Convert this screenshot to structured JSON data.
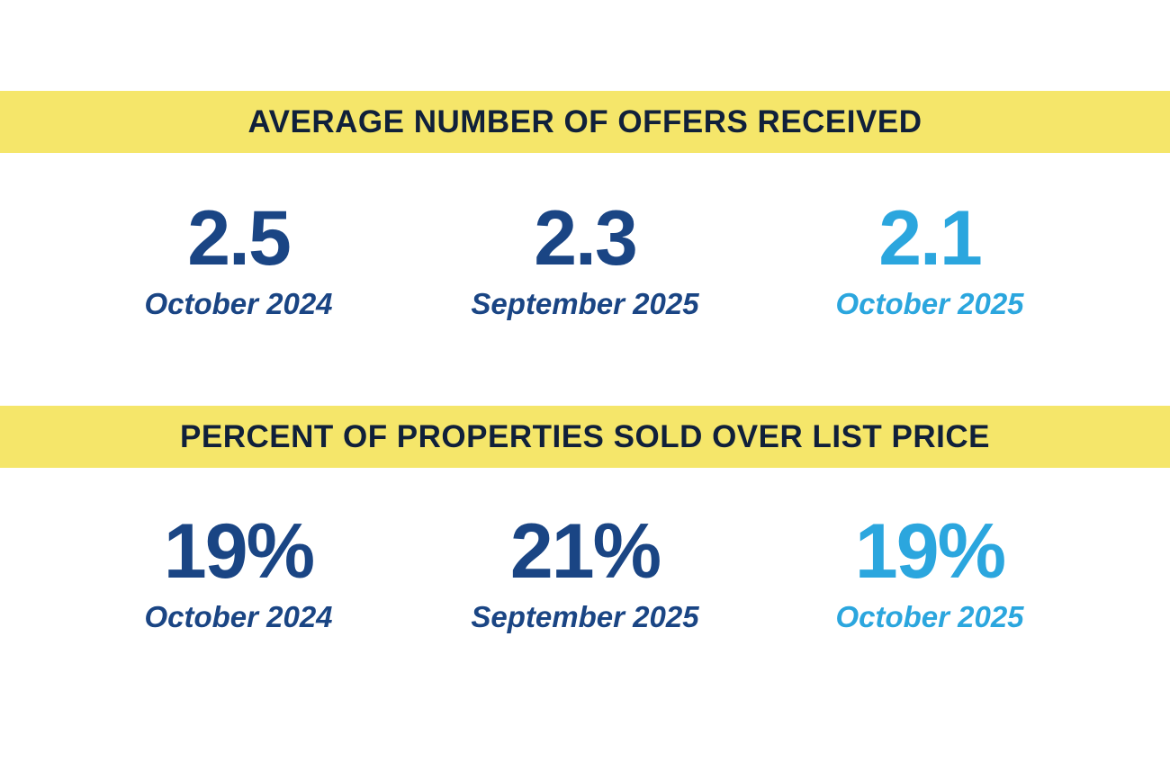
{
  "colors": {
    "band": "#F5E66A",
    "heading": "#10203A",
    "past": "#1A4584",
    "current": "#2BA6DE"
  },
  "sections": [
    {
      "title": "AVERAGE NUMBER OF OFFERS RECEIVED",
      "stats": [
        {
          "value": "2.5",
          "label": "October 2024"
        },
        {
          "value": "2.3",
          "label": "September 2025"
        },
        {
          "value": "2.1",
          "label": "October 2025"
        }
      ]
    },
    {
      "title": "PERCENT OF PROPERTIES SOLD OVER LIST PRICE",
      "stats": [
        {
          "value": "19%",
          "label": "October 2024"
        },
        {
          "value": "21%",
          "label": "September 2025"
        },
        {
          "value": "19%",
          "label": "October 2025"
        }
      ]
    }
  ]
}
